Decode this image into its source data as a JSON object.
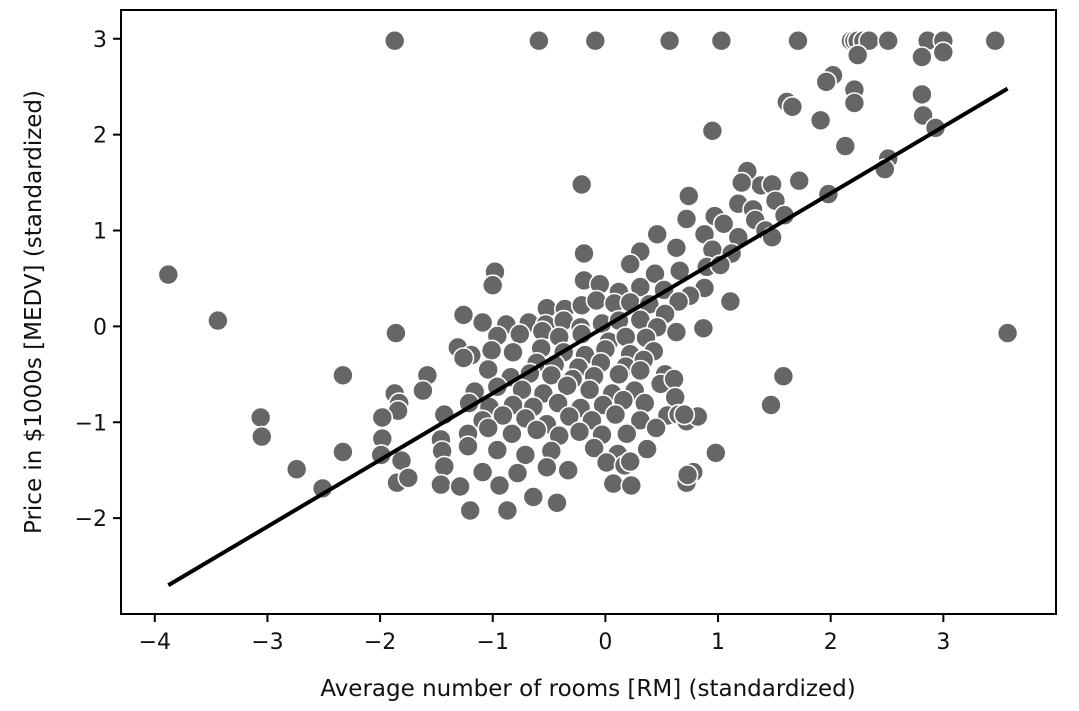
{
  "chart_data": {
    "type": "scatter",
    "title": "",
    "xlabel": "Average number of rooms [RM] (standardized)",
    "ylabel": "Price in $1000s [MEDV] (standardized)",
    "xlim": [
      -4.3,
      4.0
    ],
    "ylim": [
      -3.0,
      3.3
    ],
    "x_ticks": [
      -4,
      -3,
      -2,
      -1,
      0,
      1,
      2,
      3
    ],
    "x_tick_labels": [
      "−4",
      "−3",
      "−2",
      "−1",
      "0",
      "1",
      "2",
      "3"
    ],
    "y_ticks": [
      -2,
      -1,
      0,
      1,
      2,
      3
    ],
    "y_tick_labels": [
      "−2",
      "−1",
      "0",
      "1",
      "2",
      "3"
    ],
    "grid": false,
    "colors": {
      "points": "#666666",
      "point_edge": "#ffffff",
      "line": "#000000",
      "axes": "#000000"
    },
    "series": [
      {
        "name": "data",
        "kind": "scatter",
        "points": [
          [
            -3.88,
            0.54
          ],
          [
            -3.44,
            0.06
          ],
          [
            -1.87,
            2.98
          ],
          [
            -0.59,
            2.98
          ],
          [
            -0.09,
            2.98
          ],
          [
            0.57,
            2.98
          ],
          [
            1.03,
            2.98
          ],
          [
            1.71,
            2.98
          ],
          [
            2.18,
            2.98
          ],
          [
            2.21,
            2.98
          ],
          [
            2.24,
            2.98
          ],
          [
            2.29,
            2.98
          ],
          [
            2.34,
            2.98
          ],
          [
            2.51,
            2.98
          ],
          [
            2.86,
            2.98
          ],
          [
            3.0,
            2.98
          ],
          [
            3.46,
            2.98
          ],
          [
            3.0,
            2.86
          ],
          [
            2.24,
            2.83
          ],
          [
            2.81,
            2.81
          ],
          [
            2.02,
            2.62
          ],
          [
            1.96,
            2.55
          ],
          [
            2.21,
            2.47
          ],
          [
            2.81,
            2.42
          ],
          [
            1.61,
            2.34
          ],
          [
            1.66,
            2.29
          ],
          [
            2.21,
            2.33
          ],
          [
            2.82,
            2.2
          ],
          [
            1.91,
            2.15
          ],
          [
            2.93,
            2.07
          ],
          [
            0.95,
            2.04
          ],
          [
            2.13,
            1.88
          ],
          [
            2.51,
            1.75
          ],
          [
            2.48,
            1.64
          ],
          [
            -0.21,
            1.48
          ],
          [
            1.26,
            1.62
          ],
          [
            1.38,
            1.47
          ],
          [
            1.48,
            1.48
          ],
          [
            1.72,
            1.52
          ],
          [
            1.21,
            1.5
          ],
          [
            0.74,
            1.36
          ],
          [
            1.18,
            1.28
          ],
          [
            1.51,
            1.31
          ],
          [
            1.98,
            1.38
          ],
          [
            1.31,
            1.22
          ],
          [
            1.33,
            1.11
          ],
          [
            0.97,
            1.15
          ],
          [
            0.72,
            1.12
          ],
          [
            1.59,
            1.16
          ],
          [
            1.05,
            1.07
          ],
          [
            1.42,
            1.0
          ],
          [
            1.48,
            0.93
          ],
          [
            1.18,
            0.93
          ],
          [
            0.88,
            0.96
          ],
          [
            0.46,
            0.96
          ],
          [
            0.63,
            0.82
          ],
          [
            0.95,
            0.8
          ],
          [
            1.12,
            0.76
          ],
          [
            0.31,
            0.78
          ],
          [
            0.22,
            0.65
          ],
          [
            0.44,
            0.55
          ],
          [
            0.66,
            0.58
          ],
          [
            0.9,
            0.62
          ],
          [
            1.02,
            0.64
          ],
          [
            -0.19,
            0.76
          ],
          [
            -0.98,
            0.57
          ],
          [
            -1.0,
            0.43
          ],
          [
            -0.19,
            0.48
          ],
          [
            -0.05,
            0.44
          ],
          [
            0.12,
            0.36
          ],
          [
            0.31,
            0.41
          ],
          [
            0.52,
            0.38
          ],
          [
            0.88,
            0.4
          ],
          [
            0.75,
            0.32
          ],
          [
            1.11,
            0.26
          ],
          [
            0.65,
            0.26
          ],
          [
            -0.52,
            0.19
          ],
          [
            -0.36,
            0.18
          ],
          [
            -0.21,
            0.22
          ],
          [
            -0.08,
            0.27
          ],
          [
            0.08,
            0.24
          ],
          [
            0.22,
            0.25
          ],
          [
            0.39,
            0.23
          ],
          [
            0.53,
            0.13
          ],
          [
            -1.26,
            0.12
          ],
          [
            -1.09,
            0.04
          ],
          [
            -0.88,
            0.02
          ],
          [
            -0.68,
            0.04
          ],
          [
            -0.53,
            0.02
          ],
          [
            -0.37,
            0.06
          ],
          [
            -0.22,
            -0.01
          ],
          [
            -0.03,
            0.03
          ],
          [
            0.12,
            0.06
          ],
          [
            0.31,
            0.07
          ],
          [
            0.46,
            -0.01
          ],
          [
            -1.86,
            -0.07
          ],
          [
            -0.96,
            -0.1
          ],
          [
            -0.76,
            -0.08
          ],
          [
            -0.56,
            -0.05
          ],
          [
            -0.41,
            -0.11
          ],
          [
            -0.21,
            -0.08
          ],
          [
            0.03,
            -0.16
          ],
          [
            0.18,
            -0.11
          ],
          [
            0.36,
            -0.12
          ],
          [
            0.63,
            -0.06
          ],
          [
            0.87,
            -0.02
          ],
          [
            -1.31,
            -0.22
          ],
          [
            -1.19,
            -0.3
          ],
          [
            -1.01,
            -0.25
          ],
          [
            -0.82,
            -0.27
          ],
          [
            -0.57,
            -0.23
          ],
          [
            -0.37,
            -0.27
          ],
          [
            -0.18,
            -0.3
          ],
          [
            0.0,
            -0.24
          ],
          [
            0.22,
            -0.29
          ],
          [
            0.43,
            -0.26
          ],
          [
            -1.26,
            -0.33
          ],
          [
            -0.61,
            -0.38
          ],
          [
            -0.45,
            -0.4
          ],
          [
            -0.24,
            -0.43
          ],
          [
            -0.04,
            -0.38
          ],
          [
            0.18,
            -0.42
          ],
          [
            0.34,
            -0.35
          ],
          [
            -2.33,
            -0.51
          ],
          [
            -1.58,
            -0.51
          ],
          [
            -1.04,
            -0.45
          ],
          [
            -0.84,
            -0.53
          ],
          [
            -0.67,
            -0.49
          ],
          [
            -0.48,
            -0.51
          ],
          [
            -0.29,
            -0.55
          ],
          [
            -0.1,
            -0.52
          ],
          [
            0.12,
            -0.5
          ],
          [
            0.31,
            -0.46
          ],
          [
            0.53,
            -0.5
          ],
          [
            -1.62,
            -0.67
          ],
          [
            -1.87,
            -0.7
          ],
          [
            -1.16,
            -0.68
          ],
          [
            -0.96,
            -0.63
          ],
          [
            -0.74,
            -0.66
          ],
          [
            -0.55,
            -0.7
          ],
          [
            -0.34,
            -0.62
          ],
          [
            -0.14,
            -0.66
          ],
          [
            0.06,
            -0.7
          ],
          [
            0.26,
            -0.67
          ],
          [
            0.49,
            -0.6
          ],
          [
            0.61,
            -0.55
          ],
          [
            1.58,
            -0.52
          ],
          [
            -1.83,
            -0.8
          ],
          [
            -1.84,
            -0.88
          ],
          [
            -1.21,
            -0.8
          ],
          [
            -1.03,
            -0.84
          ],
          [
            -0.82,
            -0.82
          ],
          [
            -0.64,
            -0.84
          ],
          [
            -0.42,
            -0.8
          ],
          [
            -0.22,
            -0.85
          ],
          [
            -0.02,
            -0.82
          ],
          [
            0.16,
            -0.77
          ],
          [
            0.35,
            -0.8
          ],
          [
            0.62,
            -0.74
          ],
          [
            1.47,
            -0.82
          ],
          [
            -3.06,
            -0.95
          ],
          [
            -1.98,
            -0.95
          ],
          [
            -1.43,
            -0.92
          ],
          [
            -1.09,
            -0.98
          ],
          [
            -0.91,
            -0.93
          ],
          [
            -0.71,
            -0.96
          ],
          [
            -0.52,
            -1.02
          ],
          [
            -0.32,
            -0.94
          ],
          [
            -0.12,
            -0.98
          ],
          [
            0.09,
            -0.92
          ],
          [
            0.31,
            -0.98
          ],
          [
            0.55,
            -0.93
          ],
          [
            0.65,
            -0.92
          ],
          [
            0.72,
            -0.99
          ],
          [
            0.82,
            -0.94
          ],
          [
            -3.05,
            -1.15
          ],
          [
            -1.98,
            -1.17
          ],
          [
            -1.46,
            -1.18
          ],
          [
            -1.22,
            -1.12
          ],
          [
            -1.04,
            -1.06
          ],
          [
            -0.83,
            -1.12
          ],
          [
            -0.61,
            -1.08
          ],
          [
            -0.41,
            -1.14
          ],
          [
            -0.23,
            -1.1
          ],
          [
            -0.03,
            -1.13
          ],
          [
            0.19,
            -1.12
          ],
          [
            0.45,
            -1.06
          ],
          [
            -2.33,
            -1.31
          ],
          [
            -1.99,
            -1.34
          ],
          [
            -1.45,
            -1.3
          ],
          [
            -1.22,
            -1.25
          ],
          [
            -0.96,
            -1.29
          ],
          [
            -0.71,
            -1.34
          ],
          [
            -0.48,
            -1.3
          ],
          [
            -0.1,
            -1.27
          ],
          [
            0.11,
            -1.33
          ],
          [
            0.37,
            -1.28
          ],
          [
            0.98,
            -1.32
          ],
          [
            -2.74,
            -1.49
          ],
          [
            -1.81,
            -1.4
          ],
          [
            -1.43,
            -1.46
          ],
          [
            -1.09,
            -1.52
          ],
          [
            -0.78,
            -1.53
          ],
          [
            -0.52,
            -1.47
          ],
          [
            -0.33,
            -1.5
          ],
          [
            0.01,
            -1.42
          ],
          [
            0.17,
            -1.45
          ],
          [
            0.22,
            -1.41
          ],
          [
            0.78,
            -1.52
          ],
          [
            -2.51,
            -1.69
          ],
          [
            -1.85,
            -1.63
          ],
          [
            -1.75,
            -1.58
          ],
          [
            -1.46,
            -1.65
          ],
          [
            -1.29,
            -1.67
          ],
          [
            -0.94,
            -1.66
          ],
          [
            -0.64,
            -1.78
          ],
          [
            -0.43,
            -1.84
          ],
          [
            0.07,
            -1.64
          ],
          [
            0.23,
            -1.66
          ],
          [
            0.72,
            -1.63
          ],
          [
            -1.2,
            -1.92
          ],
          [
            -0.87,
            -1.92
          ],
          [
            3.57,
            -0.07
          ],
          [
            0.73,
            -1.55
          ],
          [
            0.7,
            -0.92
          ]
        ]
      },
      {
        "name": "fit",
        "kind": "line",
        "points": [
          [
            -3.88,
            -2.7
          ],
          [
            3.57,
            2.48
          ]
        ]
      }
    ]
  }
}
